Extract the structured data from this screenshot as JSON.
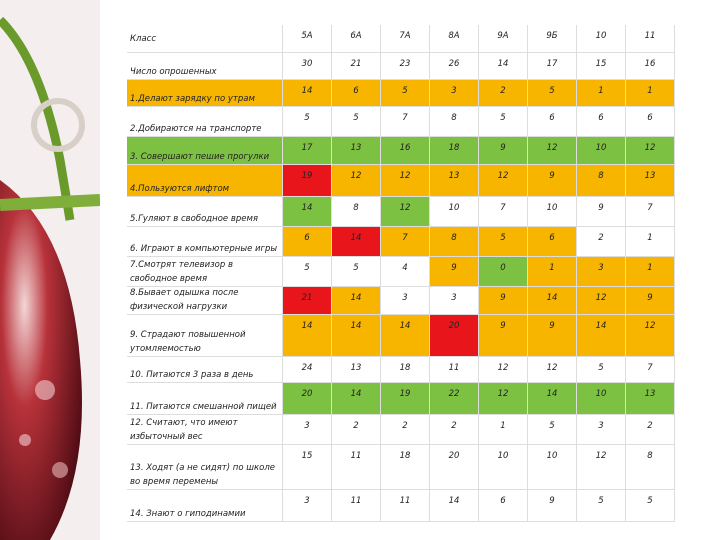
{
  "table": {
    "header": [
      "Класс",
      "5А",
      "6А",
      "7А",
      "8А",
      "9А",
      "9Б",
      "10",
      "11"
    ],
    "rows": [
      {
        "label": "Число опрошенных",
        "values": [
          30,
          21,
          23,
          26,
          14,
          17,
          15,
          16
        ],
        "label_color": null,
        "colors": [
          null,
          null,
          null,
          null,
          null,
          null,
          null,
          null
        ]
      },
      {
        "label": "1.Делают зарядку по утрам",
        "values": [
          14,
          6,
          5,
          3,
          2,
          5,
          1,
          1
        ],
        "label_color": "#f7b500",
        "colors": [
          "#f7b500",
          "#f7b500",
          "#f7b500",
          "#f7b500",
          "#f7b500",
          "#f7b500",
          "#f7b500",
          "#f7b500"
        ]
      },
      {
        "label": "2.Добираются на транспорте",
        "values": [
          5,
          5,
          7,
          8,
          5,
          6,
          6,
          6
        ],
        "label_color": null,
        "colors": [
          null,
          null,
          null,
          null,
          null,
          null,
          null,
          null
        ]
      },
      {
        "label": "3. Совершают пешие прогулки",
        "values": [
          17,
          13,
          16,
          18,
          9,
          12,
          10,
          12
        ],
        "label_color": "#7dc142",
        "colors": [
          "#7dc142",
          "#7dc142",
          "#7dc142",
          "#7dc142",
          "#7dc142",
          "#7dc142",
          "#7dc142",
          "#7dc142"
        ]
      },
      {
        "label": "4.Пользуются лифтом",
        "values": [
          19,
          12,
          12,
          13,
          12,
          9,
          8,
          13
        ],
        "label_color": "#f7b500",
        "colors": [
          "#e8161b",
          "#f7b500",
          "#f7b500",
          "#f7b500",
          "#f7b500",
          "#f7b500",
          "#f7b500",
          "#f7b500"
        ]
      },
      {
        "label": "5.Гуляют в свободное время",
        "values": [
          14,
          8,
          12,
          10,
          7,
          10,
          9,
          7
        ],
        "label_color": null,
        "colors": [
          "#7dc142",
          null,
          "#7dc142",
          null,
          null,
          null,
          null,
          null
        ]
      },
      {
        "label": "6. Играют в компьютерные игры",
        "values": [
          6,
          14,
          7,
          8,
          5,
          6,
          2,
          1
        ],
        "label_color": null,
        "colors": [
          "#f7b500",
          "#e8161b",
          "#f7b500",
          "#f7b500",
          "#f7b500",
          "#f7b500",
          null,
          null
        ]
      },
      {
        "label": "7.Смотрят телевизор в свободное время",
        "values": [
          5,
          5,
          4,
          9,
          0,
          1,
          3,
          1
        ],
        "label_color": null,
        "colors": [
          null,
          null,
          null,
          "#f7b500",
          "#7dc142",
          "#f7b500",
          "#f7b500",
          "#f7b500"
        ]
      },
      {
        "label": "8.Бывает одышка после физической нагрузки",
        "values": [
          21,
          14,
          3,
          3,
          9,
          14,
          12,
          9
        ],
        "label_color": null,
        "colors": [
          "#e8161b",
          "#f7b500",
          null,
          null,
          "#f7b500",
          "#f7b500",
          "#f7b500",
          "#f7b500"
        ]
      },
      {
        "label": "9. Страдают повышенной утомляемостью",
        "values": [
          14,
          14,
          14,
          20,
          9,
          9,
          14,
          12
        ],
        "label_color": null,
        "colors": [
          "#f7b500",
          "#f7b500",
          "#f7b500",
          "#e8161b",
          "#f7b500",
          "#f7b500",
          "#f7b500",
          "#f7b500"
        ]
      },
      {
        "label": "10. Питаются 3 раза в день",
        "values": [
          24,
          13,
          18,
          11,
          12,
          12,
          5,
          7
        ],
        "label_color": null,
        "colors": [
          null,
          null,
          null,
          null,
          null,
          null,
          null,
          null
        ]
      },
      {
        "label": "11. Питаются смешанной пищей",
        "values": [
          20,
          14,
          19,
          22,
          12,
          14,
          10,
          13
        ],
        "label_color": null,
        "colors": [
          "#7dc142",
          "#7dc142",
          "#7dc142",
          "#7dc142",
          "#7dc142",
          "#7dc142",
          "#7dc142",
          "#7dc142"
        ]
      },
      {
        "label": "12. Считают, что имеют избыточный вес",
        "values": [
          3,
          2,
          2,
          2,
          1,
          5,
          3,
          2
        ],
        "label_color": null,
        "colors": [
          null,
          null,
          null,
          null,
          null,
          null,
          null,
          null
        ]
      },
      {
        "label": "13. Ходят (а не сидят) по школе во время перемены",
        "values": [
          15,
          11,
          18,
          20,
          10,
          10,
          12,
          8
        ],
        "label_color": null,
        "colors": [
          null,
          null,
          null,
          null,
          null,
          null,
          null,
          null
        ]
      },
      {
        "label": "14. Знают о гиподинамии",
        "values": [
          3,
          11,
          11,
          14,
          6,
          9,
          5,
          5
        ],
        "label_color": null,
        "colors": [
          null,
          null,
          null,
          null,
          null,
          null,
          null,
          null
        ]
      }
    ]
  }
}
